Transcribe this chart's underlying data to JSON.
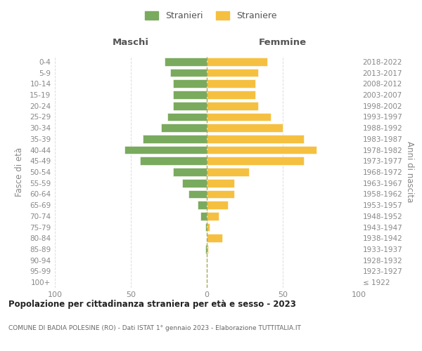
{
  "age_groups": [
    "100+",
    "95-99",
    "90-94",
    "85-89",
    "80-84",
    "75-79",
    "70-74",
    "65-69",
    "60-64",
    "55-59",
    "50-54",
    "45-49",
    "40-44",
    "35-39",
    "30-34",
    "25-29",
    "20-24",
    "15-19",
    "10-14",
    "5-9",
    "0-4"
  ],
  "birth_years": [
    "≤ 1922",
    "1923-1927",
    "1928-1932",
    "1933-1937",
    "1938-1942",
    "1943-1947",
    "1948-1952",
    "1953-1957",
    "1958-1962",
    "1963-1967",
    "1968-1972",
    "1973-1977",
    "1978-1982",
    "1983-1987",
    "1988-1992",
    "1993-1997",
    "1998-2002",
    "2003-2007",
    "2008-2012",
    "2013-2017",
    "2018-2022"
  ],
  "males": [
    0,
    0,
    0,
    1,
    0,
    1,
    4,
    6,
    12,
    16,
    22,
    44,
    54,
    42,
    30,
    26,
    22,
    22,
    22,
    24,
    28
  ],
  "females": [
    0,
    0,
    0,
    1,
    10,
    2,
    8,
    14,
    18,
    18,
    28,
    64,
    72,
    64,
    50,
    42,
    34,
    32,
    32,
    34,
    40
  ],
  "male_color": "#7aaa5e",
  "female_color": "#f5c040",
  "background_color": "#ffffff",
  "grid_color": "#dddddd",
  "title": "Popolazione per cittadinanza straniera per età e sesso - 2023",
  "subtitle": "COMUNE DI BADIA POLESINE (RO) - Dati ISTAT 1° gennaio 2023 - Elaborazione TUTTITALIA.IT",
  "xlabel_left": "Maschi",
  "xlabel_right": "Femmine",
  "ylabel_left": "Fasce di età",
  "ylabel_right": "Anni di nascita",
  "legend_stranieri": "Stranieri",
  "legend_straniere": "Straniere",
  "xlim": 100
}
